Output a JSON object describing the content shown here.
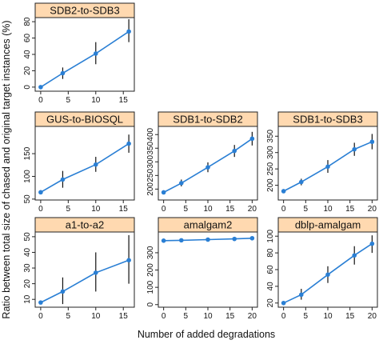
{
  "figure": {
    "ylabel": "Ratio between total size of chased and original target instances (%)",
    "xlabel": "Number of added degradations"
  },
  "chart_data": [
    {
      "type": "line",
      "title": "SDB2-to-SDB3",
      "x": [
        0,
        4,
        10,
        16
      ],
      "y": [
        0,
        17,
        41,
        68
      ],
      "err": [
        [
          0,
          0
        ],
        [
          10,
          24
        ],
        [
          28,
          55
        ],
        [
          55,
          83
        ]
      ],
      "xlim": [
        -1,
        17
      ],
      "ylim": [
        -5,
        85
      ],
      "xticks": [
        0,
        5,
        10,
        15
      ],
      "yticks": [
        0,
        20,
        40,
        60,
        80
      ],
      "color": "#2a7fd4"
    },
    {
      "type": "line",
      "title": "GUS-to-BIOSQL",
      "x": [
        0,
        4,
        10,
        16
      ],
      "y": [
        65,
        93,
        126,
        172
      ],
      "err": [
        [
          65,
          65
        ],
        [
          75,
          112
        ],
        [
          110,
          143
        ],
        [
          152,
          192
        ]
      ],
      "xlim": [
        -1,
        17
      ],
      "ylim": [
        48,
        210
      ],
      "xticks": [
        0,
        5,
        10,
        15
      ],
      "yticks": [
        50,
        100,
        150
      ],
      "color": "#2a7fd4"
    },
    {
      "type": "line",
      "title": "SDB1-to-SDB2",
      "x": [
        0,
        4,
        10,
        16,
        20
      ],
      "y": [
        188,
        222,
        280,
        340,
        385
      ],
      "err": [
        [
          188,
          188
        ],
        [
          210,
          235
        ],
        [
          262,
          298
        ],
        [
          318,
          362
        ],
        [
          360,
          410
        ]
      ],
      "xlim": [
        -1.2,
        21.2
      ],
      "ylim": [
        160,
        430
      ],
      "xticks": [
        0,
        5,
        10,
        15,
        20
      ],
      "yticks": [
        200,
        250,
        300,
        350,
        400
      ],
      "ytick_labels": [
        "200",
        "250",
        "300",
        "350",
        "400"
      ],
      "color": "#2a7fd4"
    },
    {
      "type": "line",
      "title": "SDB1-to-SDB3",
      "x": [
        0,
        4,
        10,
        16,
        20
      ],
      "y": [
        182,
        210,
        257,
        310,
        333
      ],
      "err": [
        [
          182,
          182
        ],
        [
          200,
          220
        ],
        [
          238,
          277
        ],
        [
          290,
          330
        ],
        [
          310,
          357
        ]
      ],
      "xlim": [
        -1.2,
        21.2
      ],
      "ylim": [
        155,
        380
      ],
      "xticks": [
        0,
        5,
        10,
        15,
        20
      ],
      "yticks": [
        200,
        250,
        300,
        350
      ],
      "color": "#2a7fd4"
    },
    {
      "type": "line",
      "title": "a1-to-a2",
      "x": [
        0,
        4,
        10,
        16
      ],
      "y": [
        8,
        15,
        27,
        35
      ],
      "err": [
        [
          8,
          8
        ],
        [
          7,
          24
        ],
        [
          15,
          40
        ],
        [
          20,
          51
        ]
      ],
      "xlim": [
        -1,
        17
      ],
      "ylim": [
        5,
        53
      ],
      "xticks": [
        0,
        5,
        10,
        15
      ],
      "yticks": [
        10,
        20,
        30,
        40,
        50
      ],
      "color": "#2a7fd4"
    },
    {
      "type": "line",
      "title": "amalgam2",
      "x": [
        0,
        4,
        10,
        16,
        20
      ],
      "y": [
        370,
        372,
        376,
        380,
        384
      ],
      "err": [
        [
          370,
          370
        ],
        [
          370,
          374
        ],
        [
          373,
          379
        ],
        [
          377,
          383
        ],
        [
          380,
          388
        ]
      ],
      "xlim": [
        -1.2,
        21.2
      ],
      "ylim": [
        -15,
        420
      ],
      "xticks": [
        0,
        5,
        10,
        15,
        20
      ],
      "yticks": [
        0,
        100,
        200,
        300
      ],
      "color": "#2a7fd4"
    },
    {
      "type": "line",
      "title": "dblp-amalgam",
      "x": [
        0,
        4,
        10,
        16,
        20
      ],
      "y": [
        20,
        30,
        54,
        77,
        91
      ],
      "err": [
        [
          20,
          20
        ],
        [
          24,
          37
        ],
        [
          44,
          64
        ],
        [
          66,
          88
        ],
        [
          80,
          101
        ]
      ],
      "xlim": [
        -1.2,
        21.2
      ],
      "ylim": [
        15,
        105
      ],
      "xticks": [
        0,
        5,
        10,
        15,
        20
      ],
      "yticks": [
        20,
        40,
        60,
        80,
        100
      ],
      "color": "#2a7fd4"
    }
  ]
}
